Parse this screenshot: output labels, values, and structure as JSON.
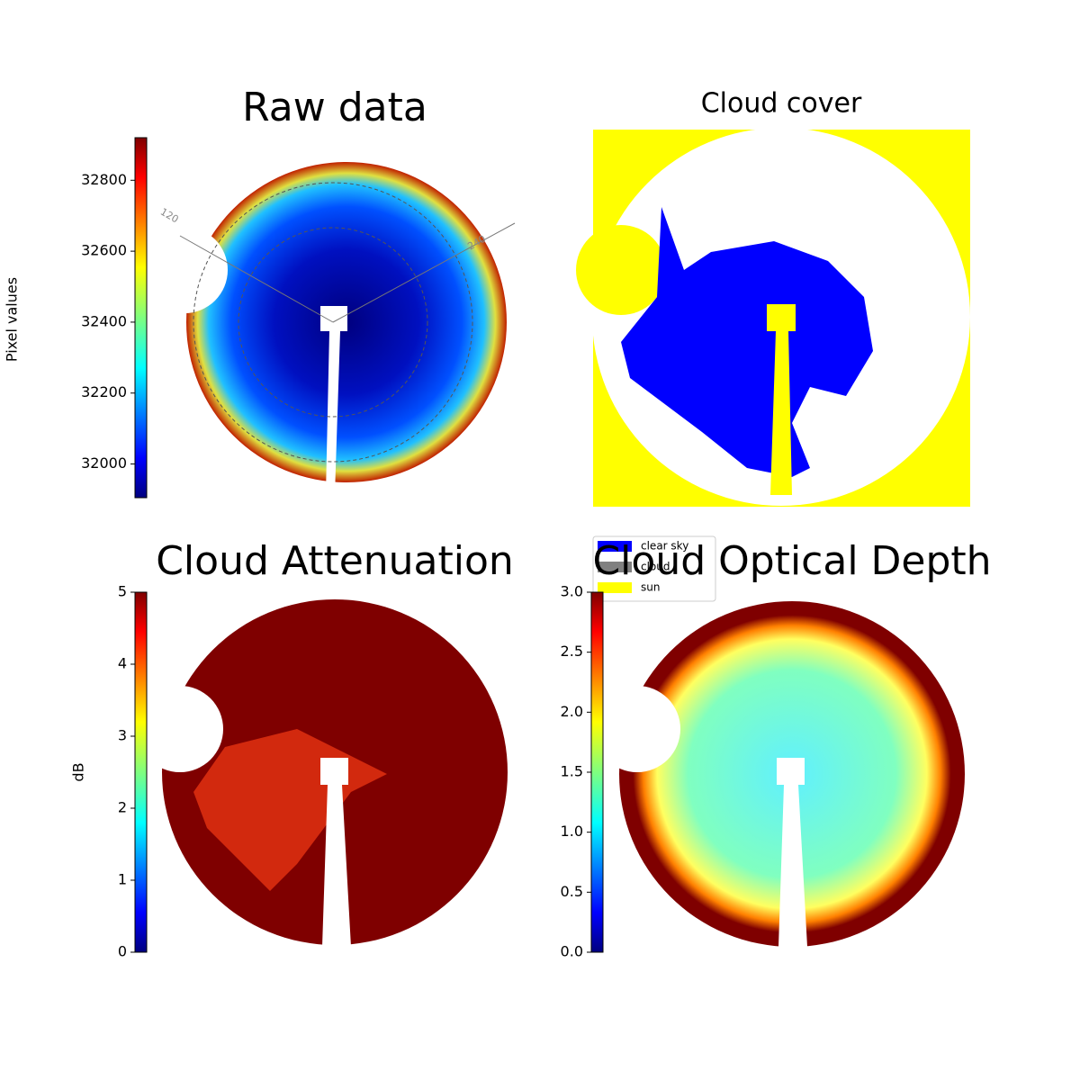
{
  "chart_data": [
    {
      "type": "image",
      "title": "Raw data",
      "colorbar_label": "Pixel values",
      "colormap": "jet",
      "ylim": [
        31905,
        32920
      ],
      "yticks": [
        32000,
        32200,
        32400,
        32600,
        32800
      ],
      "annotations": [
        "120",
        "240"
      ]
    },
    {
      "type": "image",
      "title": "Cloud cover",
      "legend": [
        {
          "name": "clear sky",
          "color": "#0000ff"
        },
        {
          "name": "cloud",
          "color": "#808080"
        },
        {
          "name": "sun",
          "color": "#ffff00"
        }
      ]
    },
    {
      "type": "image",
      "title": "Cloud Attenuation",
      "colorbar_label": "dB",
      "colormap": "jet",
      "ylim": [
        0,
        5
      ],
      "yticks": [
        0,
        1,
        2,
        3,
        4,
        5
      ]
    },
    {
      "type": "image",
      "title": "Cloud Optical Depth",
      "colormap": "jet",
      "ylim": [
        0,
        3
      ],
      "yticks": [
        {
          "value": 0,
          "label": "0.0"
        },
        {
          "value": 0.5,
          "label": "0.5"
        },
        {
          "value": 1,
          "label": "1.0"
        },
        {
          "value": 1.5,
          "label": "1.5"
        },
        {
          "value": 2,
          "label": "2.0"
        },
        {
          "value": 2.5,
          "label": "2.5"
        },
        {
          "value": 3,
          "label": "3.0"
        }
      ]
    }
  ]
}
